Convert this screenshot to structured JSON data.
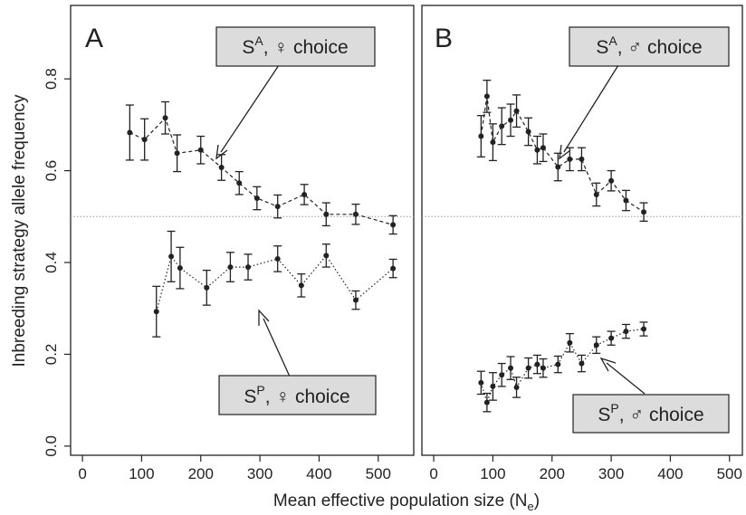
{
  "figure": {
    "xlabel_main": "Mean effective population size (N",
    "xlabel_sub": "e",
    "xlabel_close": ")",
    "ylabel": "Inbreeding strategy allele frequency",
    "reference_line": 0.5
  },
  "chart_data": [
    {
      "panel_letter": "A",
      "type": "line",
      "xlim": [
        -20,
        560
      ],
      "ylim": [
        -0.02,
        0.96
      ],
      "xticks": [
        0,
        100,
        200,
        300,
        400,
        500
      ],
      "xtick_labels": [
        "0",
        "100",
        "200",
        "300",
        "400",
        "500"
      ],
      "yticks": [
        0.0,
        0.2,
        0.4,
        0.6,
        0.8
      ],
      "ytick_labels": [
        "0.0",
        "0.2",
        "0.4",
        "0.6",
        "0.8"
      ],
      "grid": false,
      "series": [
        {
          "line_style": "dashed",
          "label": {
            "S": "S",
            "sup": "A",
            "rest": ", ♀ choice"
          },
          "x": [
            80,
            105,
            140,
            160,
            200,
            235,
            265,
            295,
            330,
            375,
            412,
            462,
            525
          ],
          "y": [
            0.683,
            0.668,
            0.715,
            0.638,
            0.645,
            0.607,
            0.573,
            0.54,
            0.522,
            0.548,
            0.505,
            0.505,
            0.482
          ],
          "err": [
            0.06,
            0.045,
            0.035,
            0.04,
            0.03,
            0.028,
            0.025,
            0.025,
            0.025,
            0.022,
            0.025,
            0.022,
            0.02
          ]
        },
        {
          "line_style": "dotted",
          "label": {
            "S": "S",
            "sup": "P",
            "rest": ", ♀ choice"
          },
          "x": [
            125,
            150,
            165,
            210,
            250,
            280,
            330,
            370,
            412,
            462,
            525
          ],
          "y": [
            0.293,
            0.413,
            0.388,
            0.345,
            0.39,
            0.39,
            0.408,
            0.35,
            0.415,
            0.318,
            0.387
          ],
          "err": [
            0.055,
            0.055,
            0.045,
            0.038,
            0.032,
            0.028,
            0.028,
            0.025,
            0.025,
            0.02,
            0.02
          ]
        }
      ]
    },
    {
      "panel_letter": "B",
      "type": "line",
      "xlim": [
        -20,
        560
      ],
      "ylim": [
        -0.02,
        0.96
      ],
      "xticks": [
        0,
        100,
        200,
        300,
        400,
        500
      ],
      "xtick_labels": [
        "0",
        "100",
        "200",
        "300",
        "400",
        "500"
      ],
      "grid": false,
      "series": [
        {
          "line_style": "dashed",
          "label": {
            "S": "S",
            "sup": "A",
            "rest": ", ♂ choice"
          },
          "x": [
            80,
            90,
            100,
            115,
            130,
            140,
            160,
            175,
            185,
            210,
            230,
            250,
            275,
            300,
            325,
            355
          ],
          "y": [
            0.675,
            0.762,
            0.662,
            0.697,
            0.71,
            0.73,
            0.685,
            0.645,
            0.65,
            0.608,
            0.625,
            0.625,
            0.548,
            0.578,
            0.535,
            0.51
          ],
          "err": [
            0.045,
            0.035,
            0.04,
            0.04,
            0.035,
            0.035,
            0.03,
            0.03,
            0.03,
            0.03,
            0.025,
            0.025,
            0.025,
            0.022,
            0.022,
            0.02
          ]
        },
        {
          "line_style": "dotted",
          "label": {
            "S": "S",
            "sup": "P",
            "rest": ", ♂ choice"
          },
          "x": [
            80,
            90,
            100,
            115,
            130,
            140,
            160,
            175,
            185,
            210,
            230,
            250,
            275,
            300,
            325,
            355
          ],
          "y": [
            0.138,
            0.095,
            0.13,
            0.155,
            0.17,
            0.128,
            0.17,
            0.178,
            0.17,
            0.178,
            0.225,
            0.18,
            0.22,
            0.235,
            0.25,
            0.255
          ],
          "err": [
            0.025,
            0.02,
            0.03,
            0.025,
            0.025,
            0.022,
            0.022,
            0.02,
            0.02,
            0.018,
            0.02,
            0.018,
            0.018,
            0.015,
            0.015,
            0.015
          ]
        }
      ]
    }
  ]
}
